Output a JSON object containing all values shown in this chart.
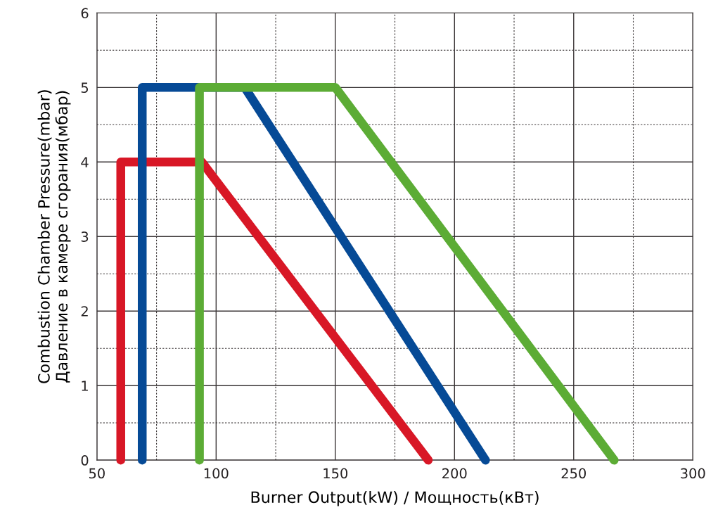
{
  "chart_data": {
    "type": "line",
    "xlabel": "Burner Output(kW) / Мощность(кВт)",
    "ylabel": "Combustion Chamber Pressure(mbar)\nДавление в камере сгорания(мбар)",
    "series": [
      {
        "color": "#d81726",
        "x": [
          60,
          60,
          94,
          189
        ],
        "values": [
          0,
          4,
          4,
          0
        ]
      },
      {
        "color": "#064a96",
        "x": [
          69,
          69,
          112,
          213
        ],
        "values": [
          0,
          5,
          5,
          0
        ]
      },
      {
        "color": "#5cac35",
        "x": [
          93,
          93,
          150,
          267
        ],
        "values": [
          0,
          5,
          5,
          0
        ]
      }
    ],
    "xlim": [
      50,
      300
    ],
    "xticks": [
      50,
      100,
      150,
      200,
      250,
      300
    ],
    "ylim": [
      0,
      6
    ],
    "yticks": [
      0,
      1,
      2,
      3,
      4,
      5,
      6
    ],
    "grid": true
  }
}
